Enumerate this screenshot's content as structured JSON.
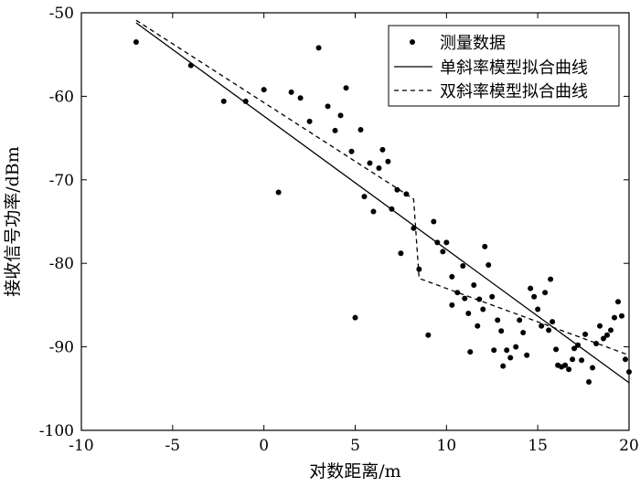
{
  "chart_data": {
    "type": "scatter",
    "xlabel": "对数距离/m",
    "ylabel": "接收信号功率/dBm",
    "xlim": [
      -10,
      20
    ],
    "ylim": [
      -100,
      -50
    ],
    "xticks": [
      "-10",
      "-5",
      "0",
      "5",
      "10",
      "15",
      "20"
    ],
    "yticks": [
      "-100",
      "-90",
      "-80",
      "-70",
      "-60",
      "-50"
    ],
    "grid": false,
    "legend_position": "top-right",
    "series": [
      {
        "name": "测量数据",
        "kind": "scatter",
        "color": "#000000",
        "points": [
          [
            -7.0,
            -53.5
          ],
          [
            -4.0,
            -56.3
          ],
          [
            -2.2,
            -60.6
          ],
          [
            -1.0,
            -60.6
          ],
          [
            0.0,
            -59.2
          ],
          [
            0.8,
            -71.5
          ],
          [
            1.5,
            -59.5
          ],
          [
            2.0,
            -60.2
          ],
          [
            2.5,
            -63.0
          ],
          [
            3.0,
            -54.2
          ],
          [
            3.5,
            -61.2
          ],
          [
            3.9,
            -64.1
          ],
          [
            4.2,
            -62.3
          ],
          [
            4.5,
            -59.0
          ],
          [
            4.8,
            -66.6
          ],
          [
            5.0,
            -86.5
          ],
          [
            5.3,
            -64.0
          ],
          [
            5.5,
            -72.0
          ],
          [
            5.8,
            -68.0
          ],
          [
            6.0,
            -73.8
          ],
          [
            6.3,
            -68.6
          ],
          [
            6.5,
            -66.4
          ],
          [
            6.8,
            -67.8
          ],
          [
            7.0,
            -73.5
          ],
          [
            7.3,
            -71.2
          ],
          [
            7.5,
            -78.8
          ],
          [
            7.8,
            -71.7
          ],
          [
            8.2,
            -75.8
          ],
          [
            8.5,
            -80.7
          ],
          [
            9.0,
            -88.6
          ],
          [
            9.3,
            -75.0
          ],
          [
            9.5,
            -77.5
          ],
          [
            9.8,
            -78.6
          ],
          [
            10.0,
            -77.5
          ],
          [
            10.3,
            -81.6
          ],
          [
            10.3,
            -85.0
          ],
          [
            10.6,
            -83.5
          ],
          [
            10.9,
            -80.3
          ],
          [
            11.0,
            -84.2
          ],
          [
            11.2,
            -86.0
          ],
          [
            11.3,
            -90.6
          ],
          [
            11.5,
            -82.6
          ],
          [
            11.7,
            -87.5
          ],
          [
            11.8,
            -84.3
          ],
          [
            12.0,
            -85.5
          ],
          [
            12.1,
            -78.0
          ],
          [
            12.3,
            -80.2
          ],
          [
            12.5,
            -84.0
          ],
          [
            12.6,
            -90.4
          ],
          [
            12.8,
            -86.8
          ],
          [
            13.0,
            -88.1
          ],
          [
            13.1,
            -92.3
          ],
          [
            13.3,
            -90.4
          ],
          [
            13.5,
            -91.3
          ],
          [
            13.8,
            -90.0
          ],
          [
            14.0,
            -86.8
          ],
          [
            14.2,
            -88.3
          ],
          [
            14.4,
            -91.0
          ],
          [
            14.6,
            -83.0
          ],
          [
            14.8,
            -84.0
          ],
          [
            15.0,
            -85.5
          ],
          [
            15.2,
            -87.5
          ],
          [
            15.4,
            -83.5
          ],
          [
            15.6,
            -88.0
          ],
          [
            15.7,
            -81.9
          ],
          [
            15.8,
            -87.0
          ],
          [
            16.0,
            -90.3
          ],
          [
            16.1,
            -92.2
          ],
          [
            16.3,
            -92.4
          ],
          [
            16.5,
            -92.2
          ],
          [
            16.7,
            -92.7
          ],
          [
            16.9,
            -91.5
          ],
          [
            17.0,
            -90.2
          ],
          [
            17.2,
            -89.8
          ],
          [
            17.4,
            -91.6
          ],
          [
            17.6,
            -88.5
          ],
          [
            17.8,
            -94.2
          ],
          [
            18.0,
            -92.5
          ],
          [
            18.2,
            -89.6
          ],
          [
            18.4,
            -87.5
          ],
          [
            18.6,
            -89.0
          ],
          [
            18.8,
            -88.6
          ],
          [
            19.0,
            -88.0
          ],
          [
            19.2,
            -86.5
          ],
          [
            19.4,
            -84.6
          ],
          [
            19.6,
            -86.3
          ],
          [
            19.8,
            -91.5
          ],
          [
            20.0,
            -93.0
          ]
        ]
      },
      {
        "name": "单斜率模型拟合曲线",
        "kind": "line",
        "style": "solid",
        "color": "#000000",
        "points": [
          [
            -7.0,
            -51.2
          ],
          [
            20.0,
            -94.3
          ]
        ]
      },
      {
        "name": "双斜率模型拟合曲线",
        "kind": "line",
        "style": "dashed",
        "color": "#000000",
        "points": [
          [
            -7.0,
            -50.9
          ],
          [
            8.2,
            -72.3
          ],
          [
            8.5,
            -81.8
          ],
          [
            20.0,
            -91.0
          ]
        ]
      }
    ]
  }
}
